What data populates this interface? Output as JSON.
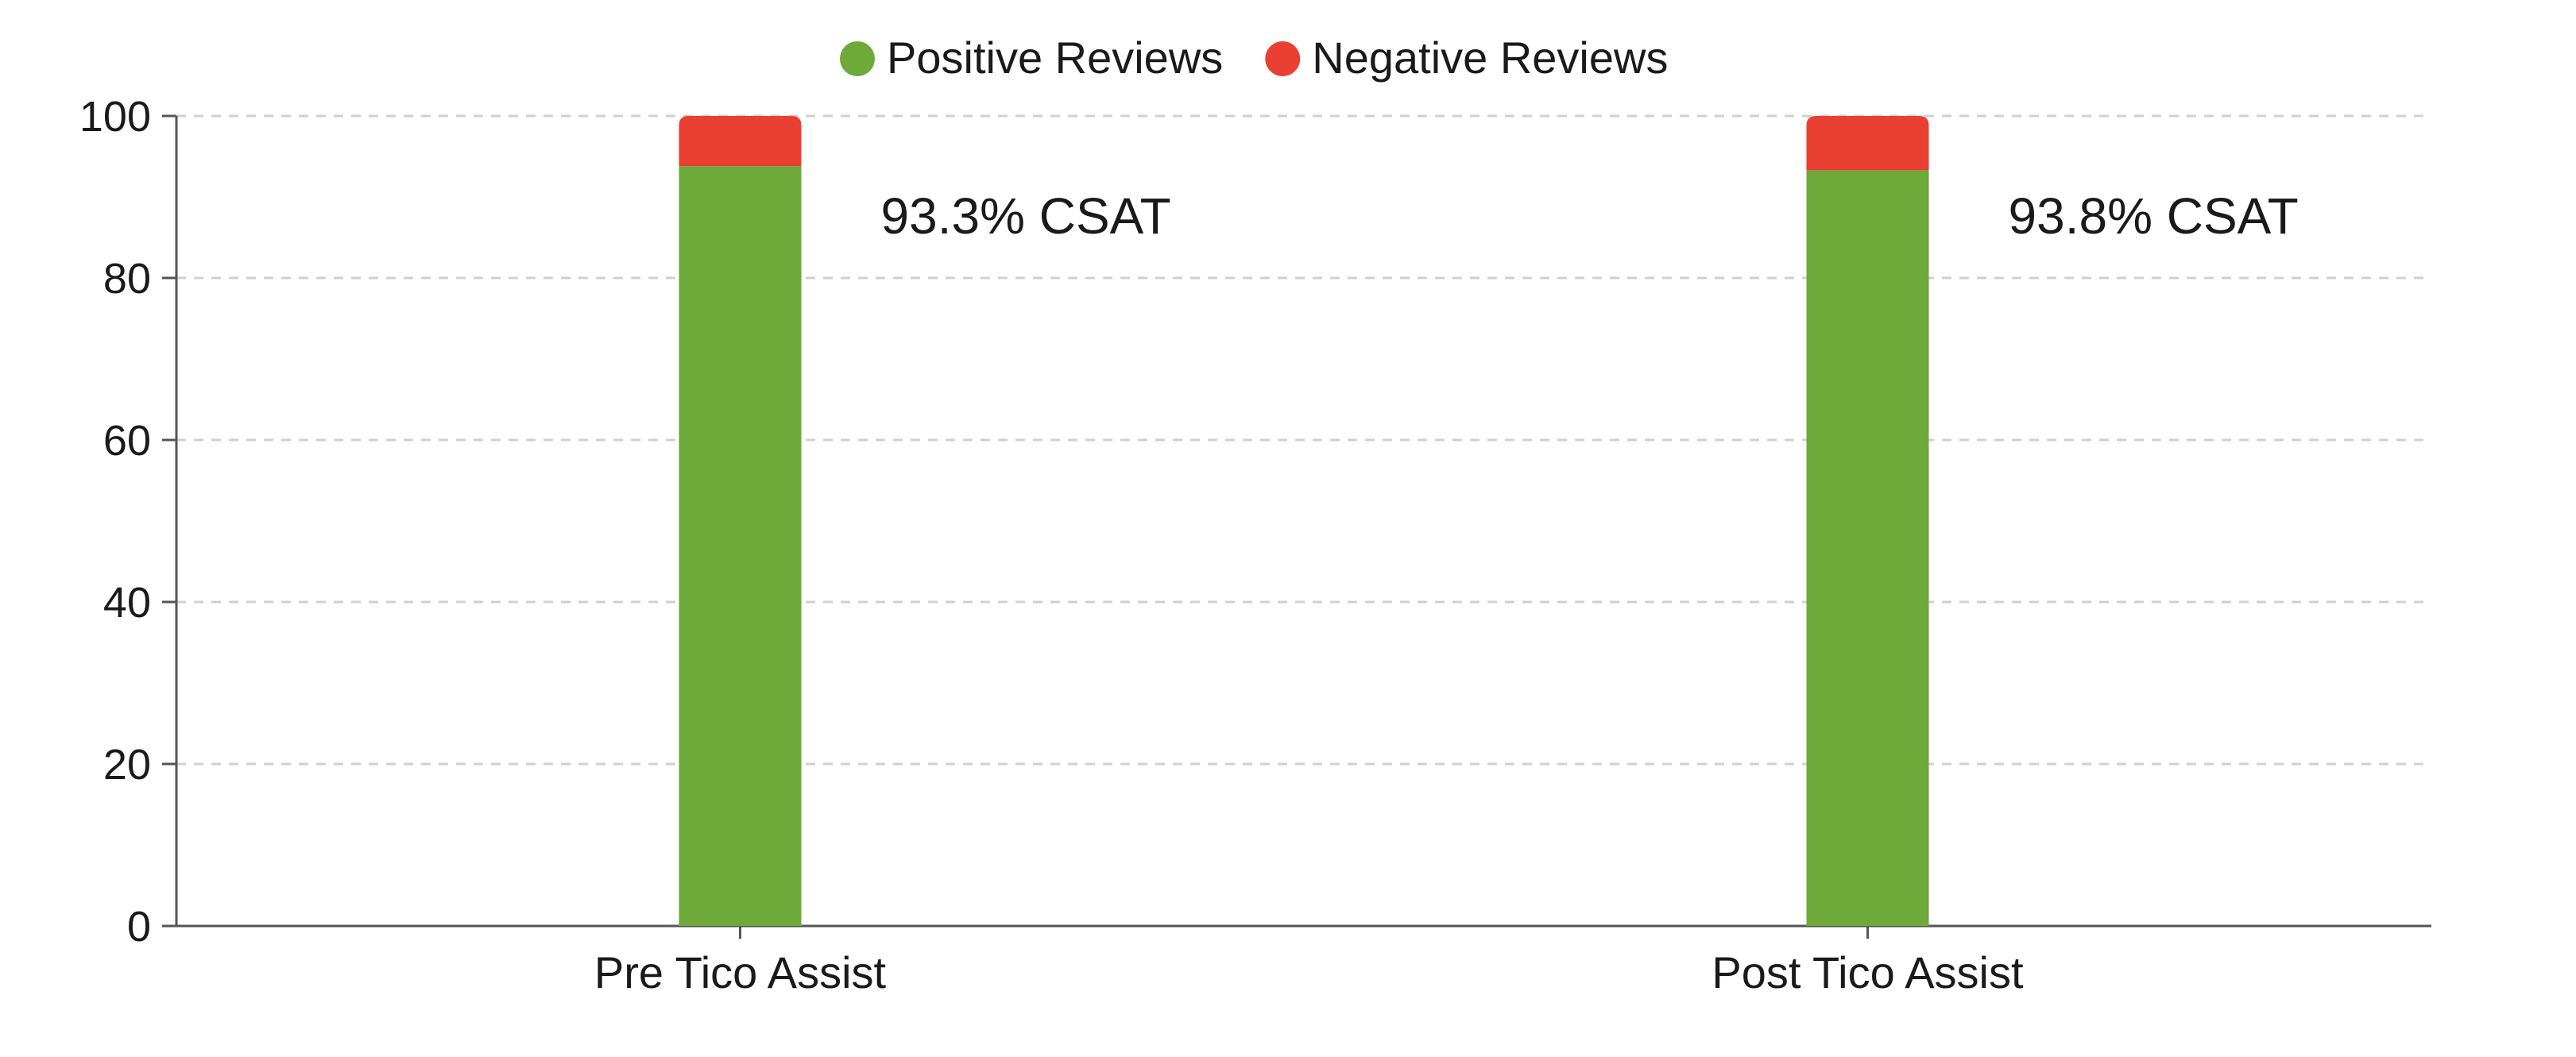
{
  "chart_data": {
    "type": "bar",
    "stacked": true,
    "categories": [
      "Pre Tico Assist",
      "Post Tico Assist"
    ],
    "series": [
      {
        "name": "Positive Reviews",
        "values": [
          93.8,
          93.3
        ],
        "color": "#6daa3a"
      },
      {
        "name": "Negative Reviews",
        "values": [
          6.2,
          6.7
        ],
        "color": "#ea3f33"
      }
    ],
    "annotations": [
      "93.3% CSAT",
      "93.8% CSAT"
    ],
    "ylim": [
      0,
      100
    ],
    "yticks": [
      "0",
      "20",
      "40",
      "60",
      "80",
      "100"
    ],
    "grid": true,
    "legend_position": "top-center"
  }
}
